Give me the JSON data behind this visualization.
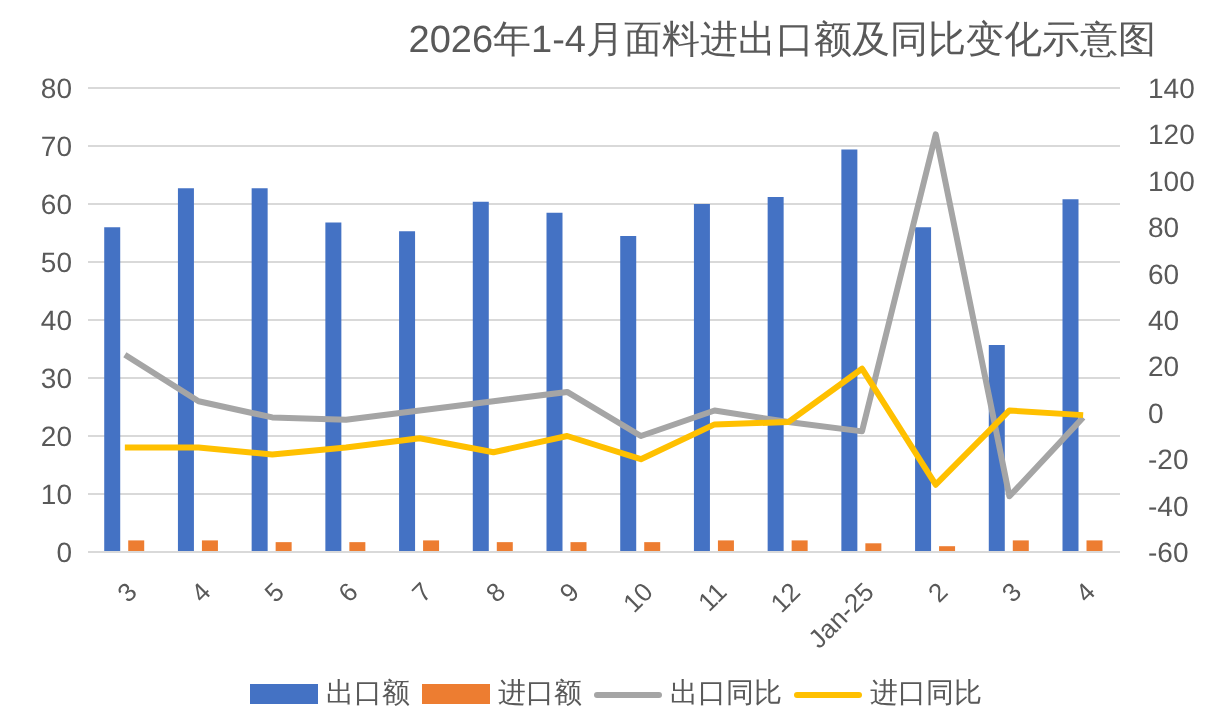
{
  "chart_data": {
    "type": "bar",
    "title": "2026年1-4月面料进出口额及同比变化示意图",
    "categories": [
      "3",
      "4",
      "5",
      "6",
      "7",
      "8",
      "9",
      "10",
      "11",
      "12",
      "Jan-25",
      "2",
      "3",
      "4"
    ],
    "series": [
      {
        "name": "出口额",
        "color": "#4472c4",
        "values": [
          56,
          62.7,
          62.7,
          56.8,
          55.3,
          60.4,
          58.5,
          54.5,
          60,
          61.2,
          69.4,
          56,
          35.7,
          60.8
        ]
      },
      {
        "name": "进口额",
        "color": "#ed7d31",
        "values": [
          2,
          2,
          1.7,
          1.7,
          2,
          1.7,
          1.7,
          1.7,
          2,
          2,
          1.5,
          1,
          2,
          2
        ]
      },
      {
        "name": "出口同比",
        "type": "line",
        "axis": "y2",
        "color": "#a5a5a5",
        "values": [
          25,
          5,
          -2,
          -3,
          1,
          5,
          9,
          -10,
          1,
          -4,
          -8,
          120,
          -36,
          -2
        ]
      },
      {
        "name": "进口同比",
        "type": "line",
        "axis": "y2",
        "color": "#ffc000",
        "values": [
          -15,
          -15,
          -18,
          -15,
          -11,
          -17,
          -10,
          -20,
          -5,
          -4,
          19,
          -31,
          1,
          -1
        ]
      }
    ],
    "ylim": [
      0,
      80
    ],
    "yticks": [
      0,
      10,
      20,
      30,
      40,
      50,
      60,
      70,
      80
    ],
    "y2lim": [
      -60,
      140
    ],
    "y2ticks": [
      -60,
      -40,
      -20,
      0,
      20,
      40,
      60,
      80,
      100,
      120,
      140
    ],
    "grid": "y",
    "legend": "bottom",
    "marker": "none"
  }
}
